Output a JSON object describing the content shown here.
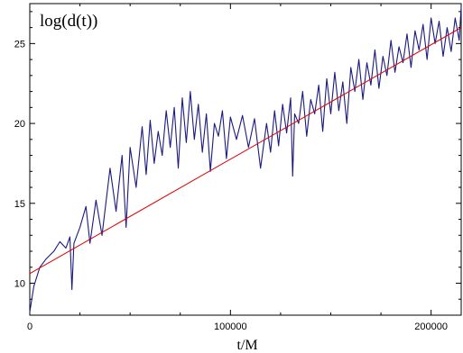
{
  "chart_data": {
    "type": "line",
    "title": "log(d(t))",
    "xlabel": "t/M",
    "ylabel": "",
    "xlim": [
      0,
      215000
    ],
    "ylim": [
      8,
      27.5
    ],
    "x_ticks": [
      {
        "value": 0,
        "label": "0"
      },
      {
        "value": 100000,
        "label": "100000"
      },
      {
        "value": 200000,
        "label": "200000"
      }
    ],
    "y_ticks": [
      {
        "value": 10,
        "label": "10"
      },
      {
        "value": 15,
        "label": "15"
      },
      {
        "value": 20,
        "label": "20"
      },
      {
        "value": 25,
        "label": "25"
      }
    ],
    "grid": false,
    "legend": "none",
    "series": [
      {
        "color": "#1a1a80",
        "x": [
          0,
          2000,
          5000,
          8000,
          12000,
          15000,
          18000,
          20000,
          21000,
          22000,
          25000,
          28000,
          30000,
          33000,
          36000,
          40000,
          43000,
          46000,
          48000,
          50000,
          53000,
          56000,
          58000,
          60000,
          62000,
          64000,
          66000,
          68000,
          70000,
          72000,
          74000,
          76000,
          78000,
          80000,
          82000,
          84000,
          86000,
          88000,
          90000,
          92000,
          94000,
          96000,
          98000,
          100000,
          103000,
          106000,
          109000,
          112000,
          115000,
          118000,
          120000,
          122000,
          124000,
          126000,
          128000,
          130000,
          131000,
          132000,
          134000,
          136000,
          138000,
          140000,
          142000,
          144000,
          146000,
          148000,
          150000,
          152000,
          154000,
          156000,
          158000,
          160000,
          162000,
          164000,
          166000,
          168000,
          170000,
          172000,
          174000,
          176000,
          178000,
          180000,
          182000,
          184000,
          186000,
          188000,
          190000,
          192000,
          194000,
          196000,
          198000,
          200000,
          202000,
          204000,
          206000,
          208000,
          210000,
          212000,
          214000,
          215000
        ],
        "values": [
          8.2,
          9.8,
          11.0,
          11.5,
          12.0,
          12.6,
          12.2,
          12.9,
          9.6,
          12.5,
          13.5,
          14.8,
          12.5,
          15.2,
          13.0,
          17.2,
          14.5,
          18.0,
          13.5,
          18.5,
          16.0,
          19.8,
          16.8,
          20.2,
          17.5,
          19.5,
          18.0,
          20.8,
          18.5,
          21.0,
          17.2,
          21.6,
          18.8,
          22.0,
          19.0,
          21.2,
          18.2,
          20.6,
          17.0,
          20.0,
          19.2,
          20.8,
          17.8,
          20.4,
          19.0,
          20.5,
          18.5,
          20.3,
          17.2,
          20.0,
          18.2,
          20.8,
          18.6,
          21.2,
          19.4,
          21.6,
          16.7,
          20.6,
          20.0,
          22.0,
          19.2,
          21.5,
          20.6,
          22.4,
          19.5,
          22.8,
          20.6,
          23.2,
          20.8,
          22.6,
          20.0,
          23.5,
          22.0,
          24.0,
          21.5,
          23.8,
          22.4,
          24.6,
          22.2,
          24.2,
          23.0,
          25.2,
          23.2,
          24.8,
          23.8,
          25.6,
          23.5,
          25.8,
          24.6,
          26.2,
          24.0,
          26.6,
          25.0,
          26.4,
          24.2,
          26.0,
          24.5,
          26.6,
          25.2,
          27.3
        ]
      },
      {
        "color": "#e00000",
        "x": [
          0,
          215000
        ],
        "values": [
          10.6,
          26.0
        ]
      }
    ]
  }
}
